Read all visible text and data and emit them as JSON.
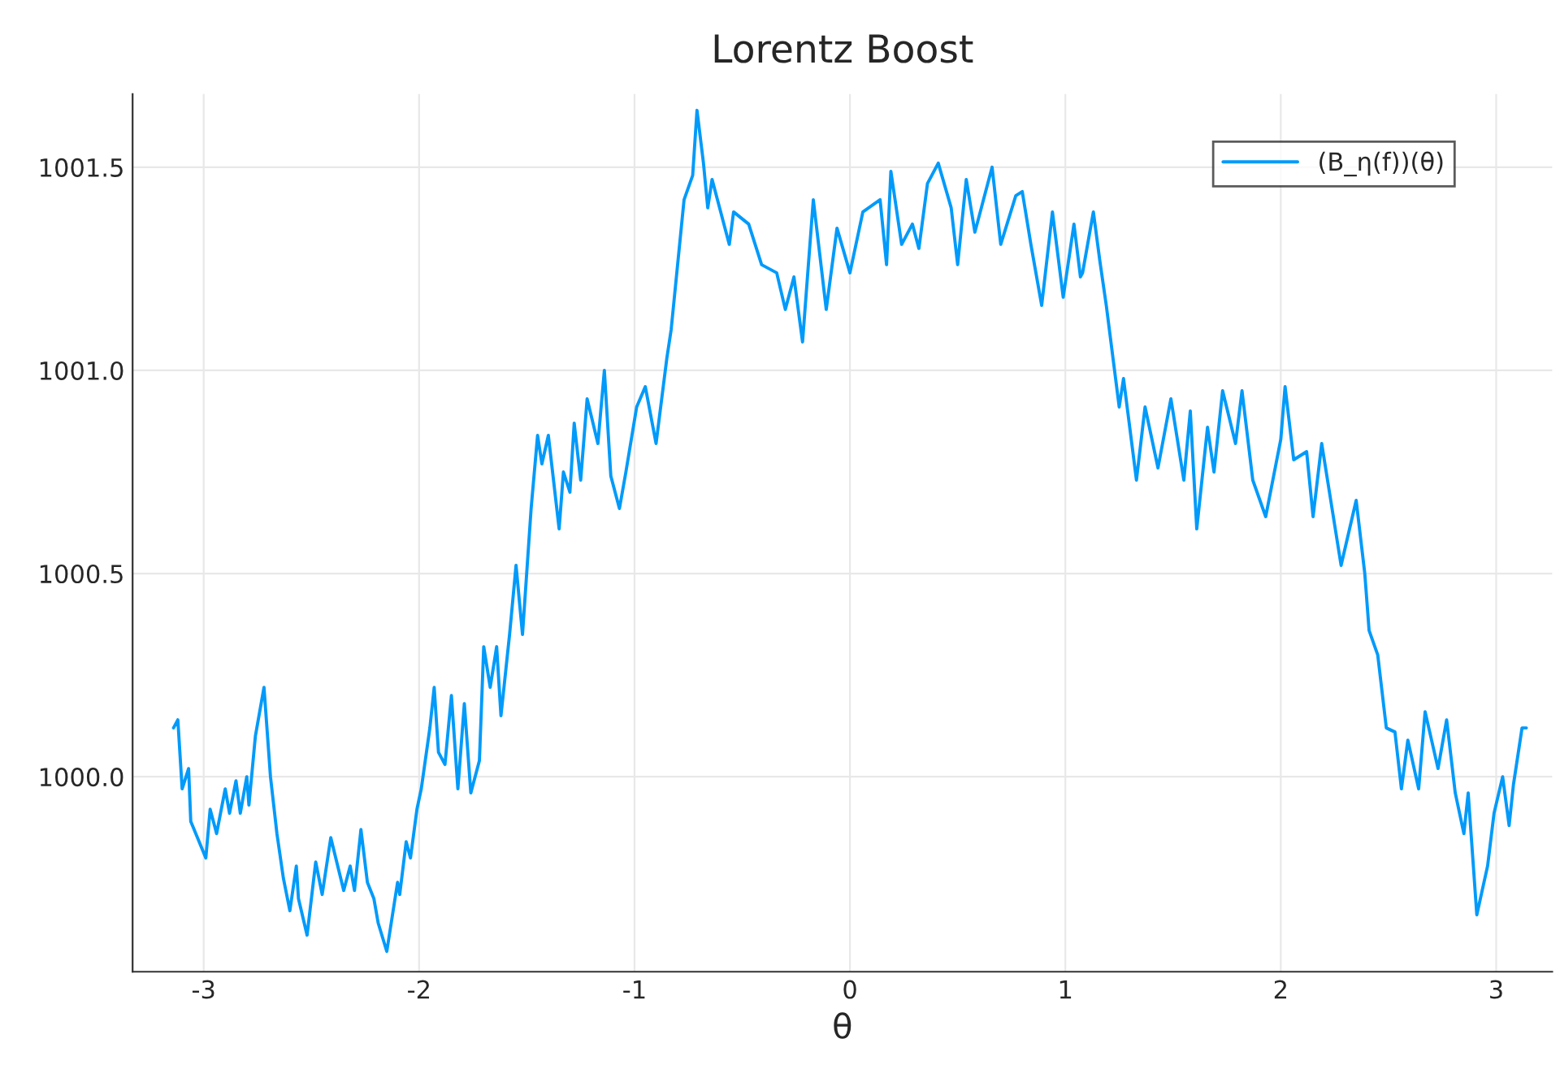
{
  "chart_data": {
    "type": "line",
    "title": "Lorentz Boost",
    "xlabel": "θ",
    "x": [
      -3.14,
      -3.12,
      -3.1,
      -3.07,
      -3.06,
      -2.99,
      -2.97,
      -2.94,
      -2.9,
      -2.88,
      -2.85,
      -2.83,
      -2.8,
      -2.79,
      -2.76,
      -2.72,
      -2.69,
      -2.66,
      -2.63,
      -2.6,
      -2.57,
      -2.56,
      -2.52,
      -2.48,
      -2.45,
      -2.41,
      -2.35,
      -2.32,
      -2.3,
      -2.27,
      -2.24,
      -2.21,
      -2.19,
      -2.15,
      -2.1,
      -2.09,
      -2.06,
      -2.04,
      -2.01,
      -1.99,
      -1.95,
      -1.93,
      -1.91,
      -1.88,
      -1.85,
      -1.82,
      -1.79,
      -1.76,
      -1.72,
      -1.7,
      -1.67,
      -1.64,
      -1.62,
      -1.58,
      -1.55,
      -1.52,
      -1.48,
      -1.45,
      -1.43,
      -1.4,
      -1.35,
      -1.33,
      -1.3,
      -1.28,
      -1.25,
      -1.22,
      -1.17,
      -1.14,
      -1.11,
      -1.07,
      -1.04,
      -0.99,
      -0.95,
      -0.9,
      -0.85,
      -0.83,
      -0.77,
      -0.73,
      -0.71,
      -0.68,
      -0.66,
      -0.64,
      -0.56,
      -0.54,
      -0.47,
      -0.41,
      -0.34,
      -0.3,
      -0.26,
      -0.22,
      -0.17,
      -0.11,
      -0.06,
      0.0,
      0.06,
      0.14,
      0.17,
      0.19,
      0.24,
      0.29,
      0.32,
      0.36,
      0.41,
      0.47,
      0.5,
      0.54,
      0.58,
      0.62,
      0.66,
      0.7,
      0.77,
      0.8,
      0.84,
      0.89,
      0.94,
      0.99,
      1.04,
      1.07,
      1.08,
      1.13,
      1.16,
      1.19,
      1.25,
      1.27,
      1.33,
      1.37,
      1.43,
      1.49,
      1.55,
      1.58,
      1.61,
      1.66,
      1.69,
      1.73,
      1.79,
      1.82,
      1.87,
      1.93,
      2.0,
      2.02,
      2.06,
      2.12,
      2.15,
      2.19,
      2.28,
      2.35,
      2.39,
      2.41,
      2.45,
      2.49,
      2.53,
      2.56,
      2.59,
      2.64,
      2.67,
      2.73,
      2.77,
      2.81,
      2.85,
      2.87,
      2.91,
      2.96,
      2.99,
      3.03,
      3.06,
      3.08,
      3.12,
      3.14
    ],
    "series": [
      {
        "name": "(B_η(f))(θ)",
        "color": "#009afa",
        "values": [
          1000.12,
          1000.14,
          999.97,
          1000.02,
          999.89,
          999.8,
          999.92,
          999.86,
          999.97,
          999.91,
          999.99,
          999.91,
          1000.0,
          999.93,
          1000.1,
          1000.22,
          1000.0,
          999.86,
          999.75,
          999.67,
          999.78,
          999.7,
          999.61,
          999.79,
          999.71,
          999.85,
          999.72,
          999.78,
          999.72,
          999.87,
          999.74,
          999.7,
          999.64,
          999.57,
          999.74,
          999.71,
          999.84,
          999.8,
          999.92,
          999.97,
          1000.12,
          1000.22,
          1000.06,
          1000.03,
          1000.2,
          999.97,
          1000.18,
          999.96,
          1000.04,
          1000.32,
          1000.22,
          1000.32,
          1000.15,
          1000.35,
          1000.52,
          1000.35,
          1000.66,
          1000.84,
          1000.77,
          1000.84,
          1000.61,
          1000.75,
          1000.7,
          1000.87,
          1000.73,
          1000.93,
          1000.82,
          1001.0,
          1000.74,
          1000.66,
          1000.75,
          1000.91,
          1000.96,
          1000.82,
          1001.03,
          1001.1,
          1001.42,
          1001.48,
          1001.64,
          1001.51,
          1001.4,
          1001.47,
          1001.31,
          1001.39,
          1001.36,
          1001.26,
          1001.24,
          1001.15,
          1001.23,
          1001.07,
          1001.42,
          1001.15,
          1001.35,
          1001.24,
          1001.39,
          1001.42,
          1001.26,
          1001.49,
          1001.31,
          1001.36,
          1001.3,
          1001.46,
          1001.51,
          1001.4,
          1001.26,
          1001.47,
          1001.34,
          1001.42,
          1001.5,
          1001.31,
          1001.43,
          1001.44,
          1001.31,
          1001.16,
          1001.39,
          1001.18,
          1001.36,
          1001.23,
          1001.24,
          1001.39,
          1001.27,
          1001.16,
          1000.91,
          1000.98,
          1000.73,
          1000.91,
          1000.76,
          1000.93,
          1000.73,
          1000.9,
          1000.61,
          1000.86,
          1000.75,
          1000.95,
          1000.82,
          1000.95,
          1000.73,
          1000.64,
          1000.83,
          1000.96,
          1000.78,
          1000.8,
          1000.64,
          1000.82,
          1000.52,
          1000.68,
          1000.5,
          1000.36,
          1000.3,
          1000.12,
          1000.11,
          999.97,
          1000.09,
          999.97,
          1000.16,
          1000.02,
          1000.14,
          999.96,
          999.86,
          999.96,
          999.66,
          999.78,
          999.91,
          1000.0,
          999.88,
          999.98,
          1000.12,
          1000.12
        ]
      }
    ],
    "xlim": [
      -3.33,
      3.26
    ],
    "ylim": [
      999.52,
      1001.68
    ],
    "xticks": [
      -3,
      -2,
      -1,
      0,
      1,
      2,
      3
    ],
    "yticks": [
      {
        "value": 1000.0,
        "label": "1000.0"
      },
      {
        "value": 1000.5,
        "label": "1000.5"
      },
      {
        "value": 1001.0,
        "label": "1001.0"
      },
      {
        "value": 1001.5,
        "label": "1001.5"
      }
    ],
    "grid": true,
    "legend": "top right",
    "line_style": "solid"
  }
}
